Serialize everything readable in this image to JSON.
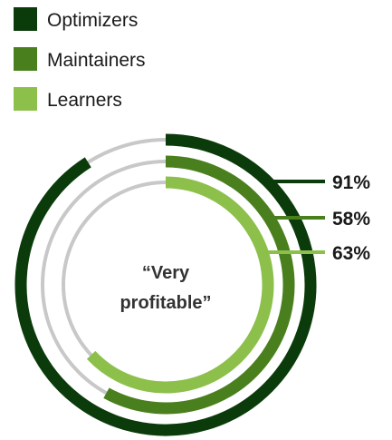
{
  "chart_data": {
    "type": "radial-bar",
    "title": "",
    "center_label": [
      "“Very",
      "profitable”"
    ],
    "track_color": "#c8c8c8",
    "series": [
      {
        "name": "Optimizers",
        "value": 91,
        "label": "91%",
        "color": "#0b3b0b"
      },
      {
        "name": "Maintainers",
        "value": 58,
        "label": "58%",
        "color": "#4a7f1e"
      },
      {
        "name": "Learners",
        "value": 63,
        "label": "63%",
        "color": "#8cc04b"
      }
    ]
  }
}
